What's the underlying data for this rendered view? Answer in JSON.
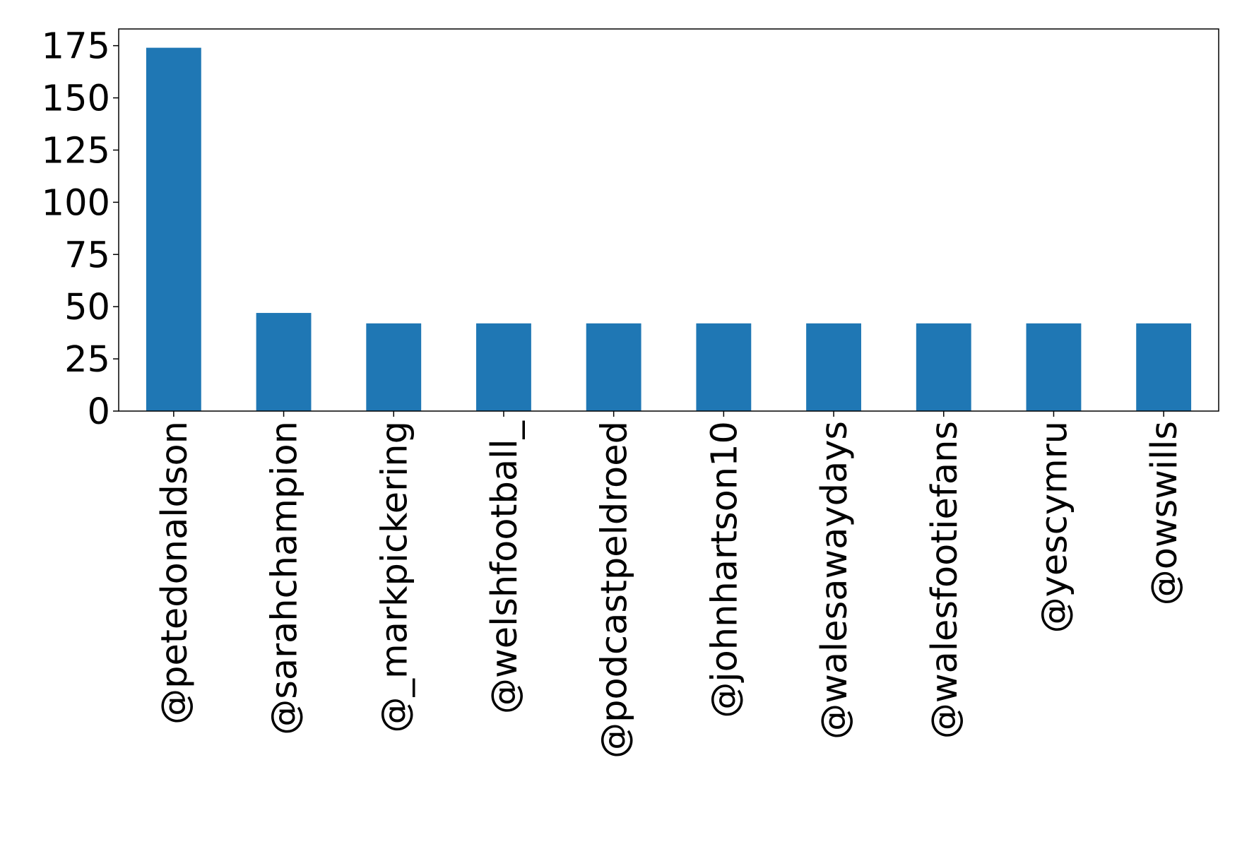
{
  "chart_data": {
    "type": "bar",
    "title": "",
    "xlabel": "",
    "ylabel": "",
    "categories": [
      "@petedonaldson",
      "@sarahchampion",
      "@_markpickering",
      "@welshfootball_",
      "@podcastpeldroed",
      "@johnhartson10",
      "@walesawaydays",
      "@walesfootiefans",
      "@yescymru",
      "@owswills"
    ],
    "values": [
      174,
      47,
      42,
      42,
      42,
      42,
      42,
      42,
      42,
      42
    ],
    "ylim": [
      0,
      183
    ],
    "yticks": [
      0,
      25,
      50,
      75,
      100,
      125,
      150,
      175
    ],
    "grid": false,
    "legend": "none",
    "bar_color": "#1f77b4"
  }
}
